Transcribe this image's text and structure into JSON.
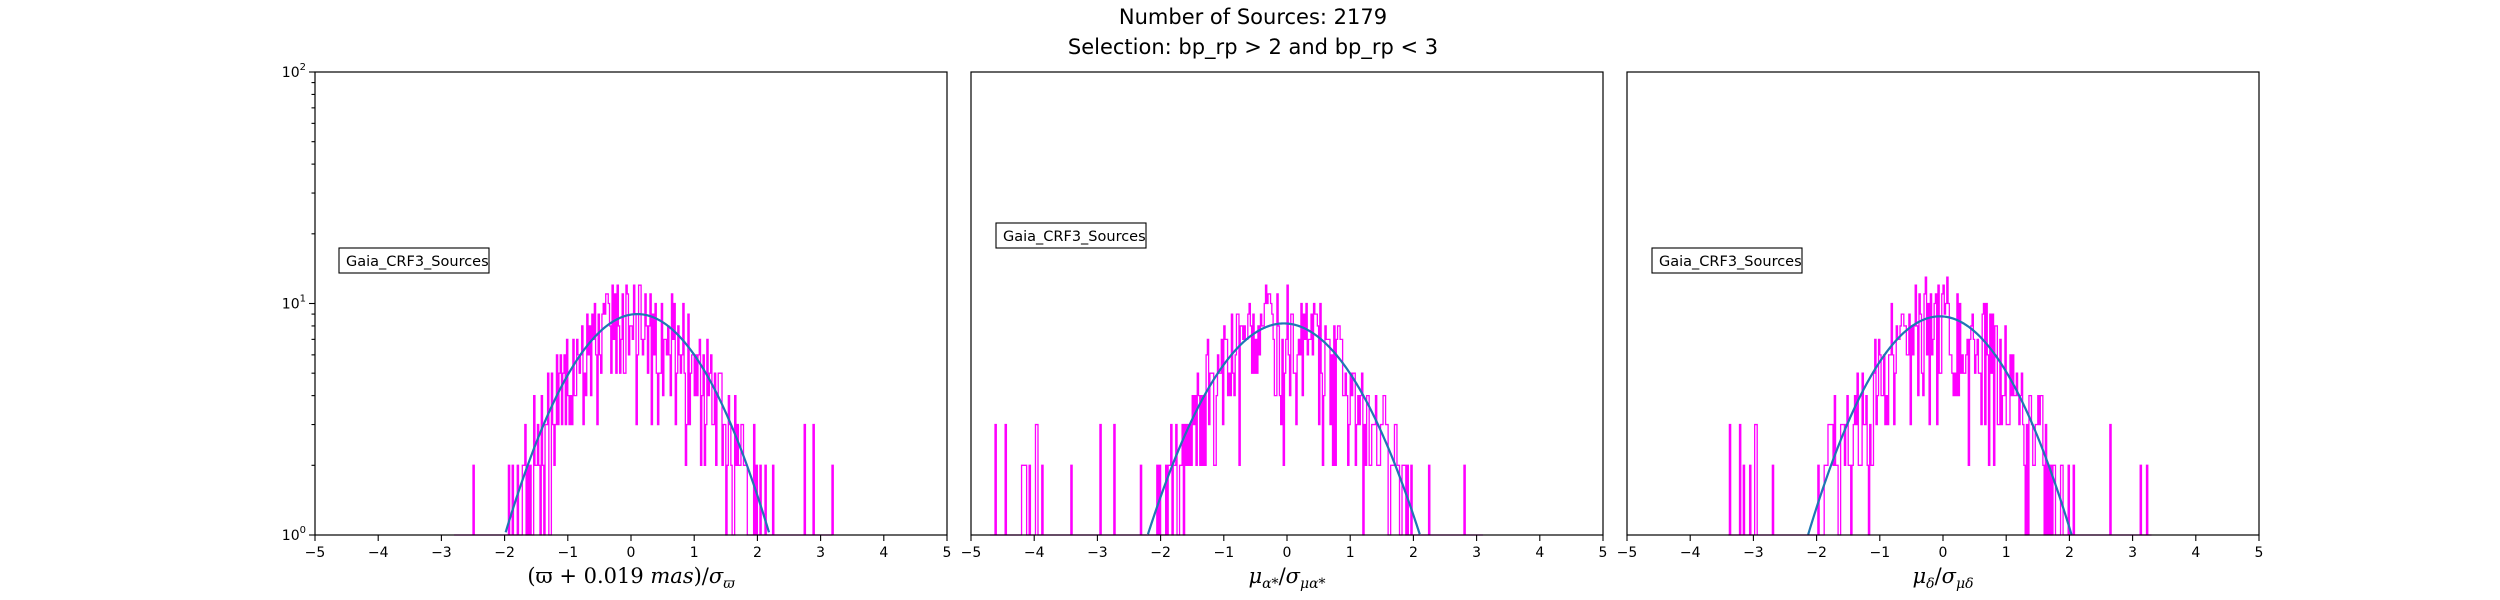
{
  "figure": {
    "title_line1": "Number of Sources: 2179",
    "title_line2": "Selection: bp_rp > 2 and bp_rp < 3"
  },
  "colors": {
    "histogram": "#ff00ff",
    "fit": "#1f77b4",
    "frame": "#000000"
  },
  "chart_data": [
    {
      "type": "histogram",
      "legend": "Gaia_CRF3_Sources",
      "legend_position": "center-left",
      "xlabel": "(ϖ + 0.019 mas)/σ_ϖ",
      "xlim": [
        -5,
        5
      ],
      "ylim": [
        1,
        100
      ],
      "yscale": "log",
      "xticks": [
        -5,
        -4,
        -3,
        -2,
        -1,
        0,
        1,
        2,
        3,
        4,
        5
      ],
      "yticks": [
        "10^0",
        "10^1",
        "10^2"
      ],
      "hist_range": [
        -2.8,
        3.2
      ],
      "hist_center": 0.1,
      "hist_peak": 14,
      "fit": {
        "amplitude": 9.0,
        "mean": 0.1,
        "sigma": 1.0
      }
    },
    {
      "type": "histogram",
      "legend": "Gaia_CRF3_Sources",
      "legend_position": "center-left",
      "xlabel": "μ_α*/σ_μα*",
      "xlim": [
        -5,
        5
      ],
      "ylim": [
        1,
        100
      ],
      "yscale": "log",
      "xticks": [
        -5,
        -4,
        -3,
        -2,
        -1,
        0,
        1,
        2,
        3,
        4,
        5
      ],
      "yticks": [
        "10^0",
        "10^1",
        "10^2"
      ],
      "hist_range": [
        -4.7,
        3.1
      ],
      "hist_center": 0.0,
      "hist_peak": 18,
      "fit": {
        "amplitude": 8.2,
        "mean": -0.05,
        "sigma": 1.05
      }
    },
    {
      "type": "histogram",
      "legend": "Gaia_CRF3_Sources",
      "legend_position": "center-left",
      "xlabel": "μ_δ/σ_μδ",
      "xlim": [
        -5,
        5
      ],
      "ylim": [
        1,
        100
      ],
      "yscale": "log",
      "xticks": [
        -5,
        -4,
        -3,
        -2,
        -1,
        0,
        1,
        2,
        3,
        4,
        5
      ],
      "yticks": [
        "10^0",
        "10^1",
        "10^2"
      ],
      "hist_range": [
        -3.4,
        3.3
      ],
      "hist_center": 0.0,
      "hist_peak": 15,
      "fit": {
        "amplitude": 8.8,
        "mean": -0.05,
        "sigma": 1.0
      }
    }
  ]
}
